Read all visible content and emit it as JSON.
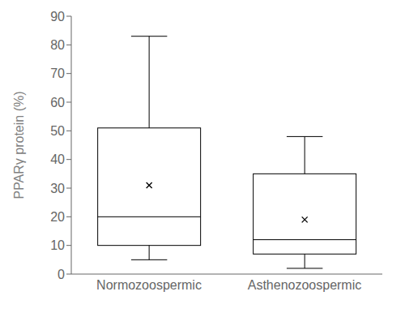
{
  "chart_data": {
    "type": "box",
    "ylabel": "PPARγ protein (%)",
    "categories": [
      "Normozoospermic",
      "Asthenozoospermic"
    ],
    "whisker_low": [
      5,
      2
    ],
    "q1": [
      10,
      7
    ],
    "median": [
      20,
      12
    ],
    "q3": [
      51,
      35
    ],
    "whisker_high": [
      83,
      48
    ],
    "mean": [
      31,
      19
    ],
    "marker": "x",
    "color": "#000000",
    "ylim": [
      0,
      90
    ],
    "yticks": [
      0,
      10,
      20,
      30,
      40,
      50,
      60,
      70,
      80,
      90
    ],
    "grid": false
  }
}
